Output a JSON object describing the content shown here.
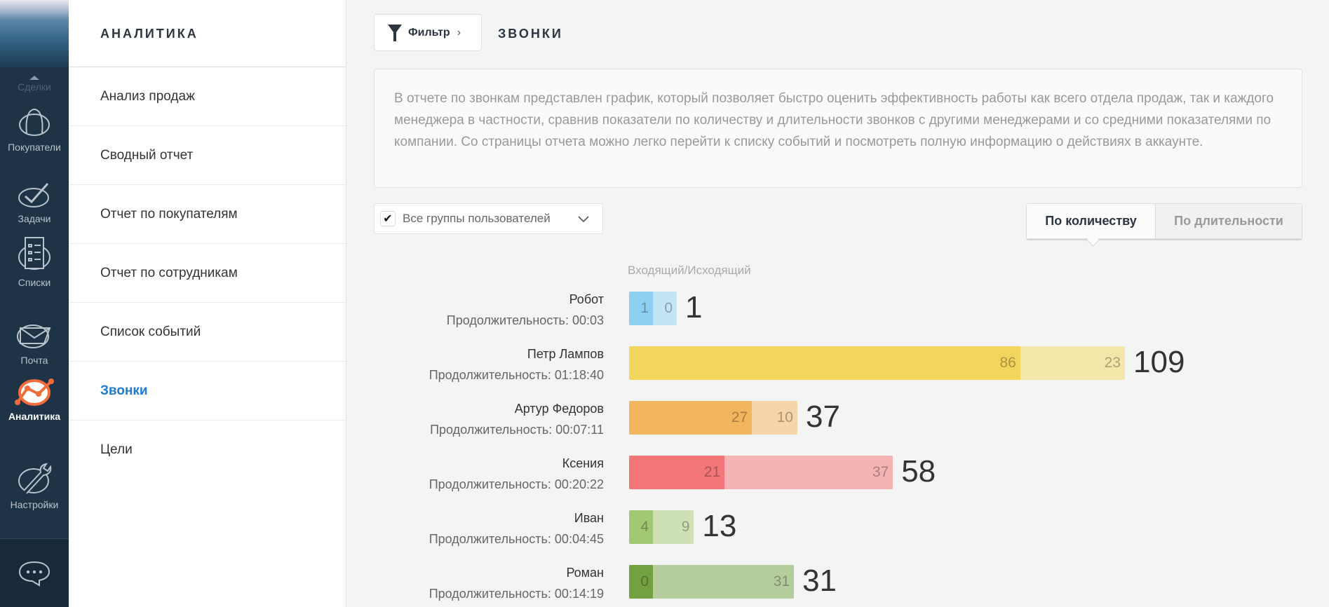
{
  "rail": {
    "deals": "Сделки",
    "items": [
      {
        "label": "Покупатели",
        "icon": "customers-icon"
      },
      {
        "label": "Задачи",
        "icon": "tasks-icon"
      },
      {
        "label": "Списки",
        "icon": "lists-icon"
      },
      {
        "label": "Почта",
        "icon": "mail-icon"
      },
      {
        "label": "Аналитика",
        "icon": "analytics-icon",
        "active": true
      },
      {
        "label": "Настройки",
        "icon": "settings-icon"
      }
    ]
  },
  "submenu": {
    "title": "АНАЛИТИКА",
    "items": [
      "Анализ продаж",
      "Сводный отчет",
      "Отчет по покупателям",
      "Отчет по сотрудникам",
      "Список событий",
      "Звонки",
      "Цели"
    ],
    "active": "Звонки"
  },
  "header": {
    "filter": "Фильтр",
    "title": "ЗВОНКИ"
  },
  "description": "В отчете по звонкам представлен график, который позволяет быстро оценить эффективность работы как всего отдела продаж, так и каждого менеджера в частности, сравнив показатели по количеству и длительности звонков с другими менеджерами и со средними показателями по компании. Со страницы отчета можно легко перейти к списку событий и посмотреть полную информацию о действиях в аккаунте.",
  "groups": {
    "label": "Все группы пользователей",
    "checked": true
  },
  "toggle": {
    "by_count": "По количеству",
    "by_duration": "По длительности",
    "selected": "По количеству"
  },
  "chart_data": {
    "type": "bar",
    "stacked": true,
    "orientation": "horizontal",
    "legend": "Входящий/Исходящий",
    "duration_prefix": "Продолжительность: ",
    "rows": [
      {
        "name": "Робот",
        "duration": "00:03",
        "incoming": 1,
        "outgoing": 0,
        "total": 1,
        "colors": [
          "#8fd0f2",
          "#c4e4f6"
        ]
      },
      {
        "name": "Петр Лампов",
        "duration": "01:18:40",
        "incoming": 86,
        "outgoing": 23,
        "total": 109,
        "colors": [
          "#f1d55d",
          "#f4e6a8"
        ]
      },
      {
        "name": "Артур Федоров",
        "duration": "00:07:11",
        "incoming": 27,
        "outgoing": 10,
        "total": 37,
        "colors": [
          "#f2b45d",
          "#f5d5a9"
        ]
      },
      {
        "name": "Ксения",
        "duration": "00:20:22",
        "incoming": 21,
        "outgoing": 37,
        "total": 58,
        "colors": [
          "#f27678",
          "#f5b4b4"
        ]
      },
      {
        "name": "Иван",
        "duration": "00:04:45",
        "incoming": 4,
        "outgoing": 9,
        "total": 13,
        "colors": [
          "#a1c875",
          "#cde0b6"
        ]
      },
      {
        "name": "Роман",
        "duration": "00:14:19",
        "incoming": 0,
        "outgoing": 31,
        "total": 31,
        "colors": [
          "#73a142",
          "#b5cc9c"
        ]
      }
    ]
  }
}
